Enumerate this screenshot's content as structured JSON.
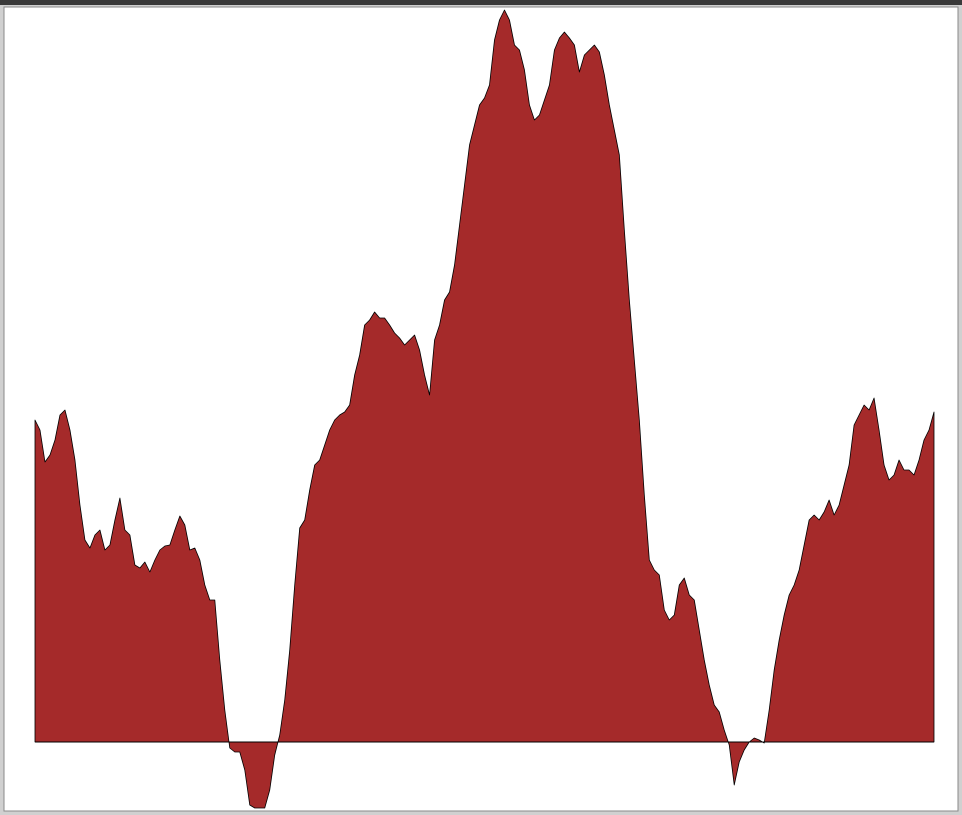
{
  "chart_data": {
    "type": "area",
    "color": "#a52a2a",
    "ylim": [
      -6.6,
      73.3
    ],
    "values": [
      32.2,
      31.2,
      28,
      28.7,
      30.2,
      32.7,
      33.2,
      31.2,
      28.2,
      23.7,
      20.2,
      19.4,
      20.7,
      21.2,
      19.2,
      19.7,
      22.2,
      24.4,
      21.2,
      20.7,
      17.7,
      17.4,
      18,
      17,
      18.2,
      19.2,
      19.6,
      19.7,
      21.2,
      22.6,
      21.7,
      19.2,
      19.4,
      18.2,
      15.7,
      14.2,
      14.2,
      8.2,
      3.2,
      -0.6,
      -1,
      -1,
      -2.8,
      -6.3,
      -6.6,
      -6.6,
      -6.6,
      -4.8,
      -1.3,
      0.7,
      4.2,
      9.2,
      15.7,
      21.4,
      22.2,
      25.2,
      27.7,
      28.2,
      29.7,
      31.2,
      32.2,
      32.7,
      33,
      33.7,
      36.7,
      38.7,
      41.7,
      42.2,
      43,
      42.4,
      42.4,
      41.7,
      40.9,
      40.4,
      39.7,
      40.2,
      40.7,
      39.2,
      36.7,
      34.7,
      40.2,
      41.7,
      44.2,
      45,
      47.7,
      51.7,
      55.7,
      59.7,
      61.7,
      63.7,
      64.4,
      65.7,
      70.2,
      72.2,
      73.2,
      72.2,
      69.7,
      69.2,
      67.2,
      63.7,
      62.2,
      62.7,
      64.2,
      65.7,
      69.2,
      70.4,
      71,
      70.4,
      69.7,
      67,
      68.7,
      69.2,
      69.7,
      69,
      66.7,
      63.7,
      61.2,
      58.7,
      51.2,
      44.2,
      38.2,
      32.2,
      24.7,
      18.2,
      17.2,
      16.7,
      13.2,
      12.2,
      12.7,
      15.7,
      16.4,
      14.7,
      14.2,
      11.2,
      8.2,
      5.7,
      3.7,
      3,
      1.2,
      -0.3,
      -4.3,
      -2,
      -0.8,
      0,
      0.4,
      0.2,
      -0.1,
      3.2,
      7.2,
      10.2,
      12.7,
      14.7,
      15.7,
      17.2,
      19.7,
      22.2,
      22.7,
      22.2,
      23,
      24.2,
      22.7,
      23.7,
      25.7,
      27.7,
      31.7,
      32.7,
      33.7,
      33.2,
      34.4,
      31.2,
      27.7,
      26.2,
      26.7,
      28.2,
      27.2,
      27.2,
      26.7,
      28.2,
      30.2,
      31.2,
      33
    ]
  }
}
